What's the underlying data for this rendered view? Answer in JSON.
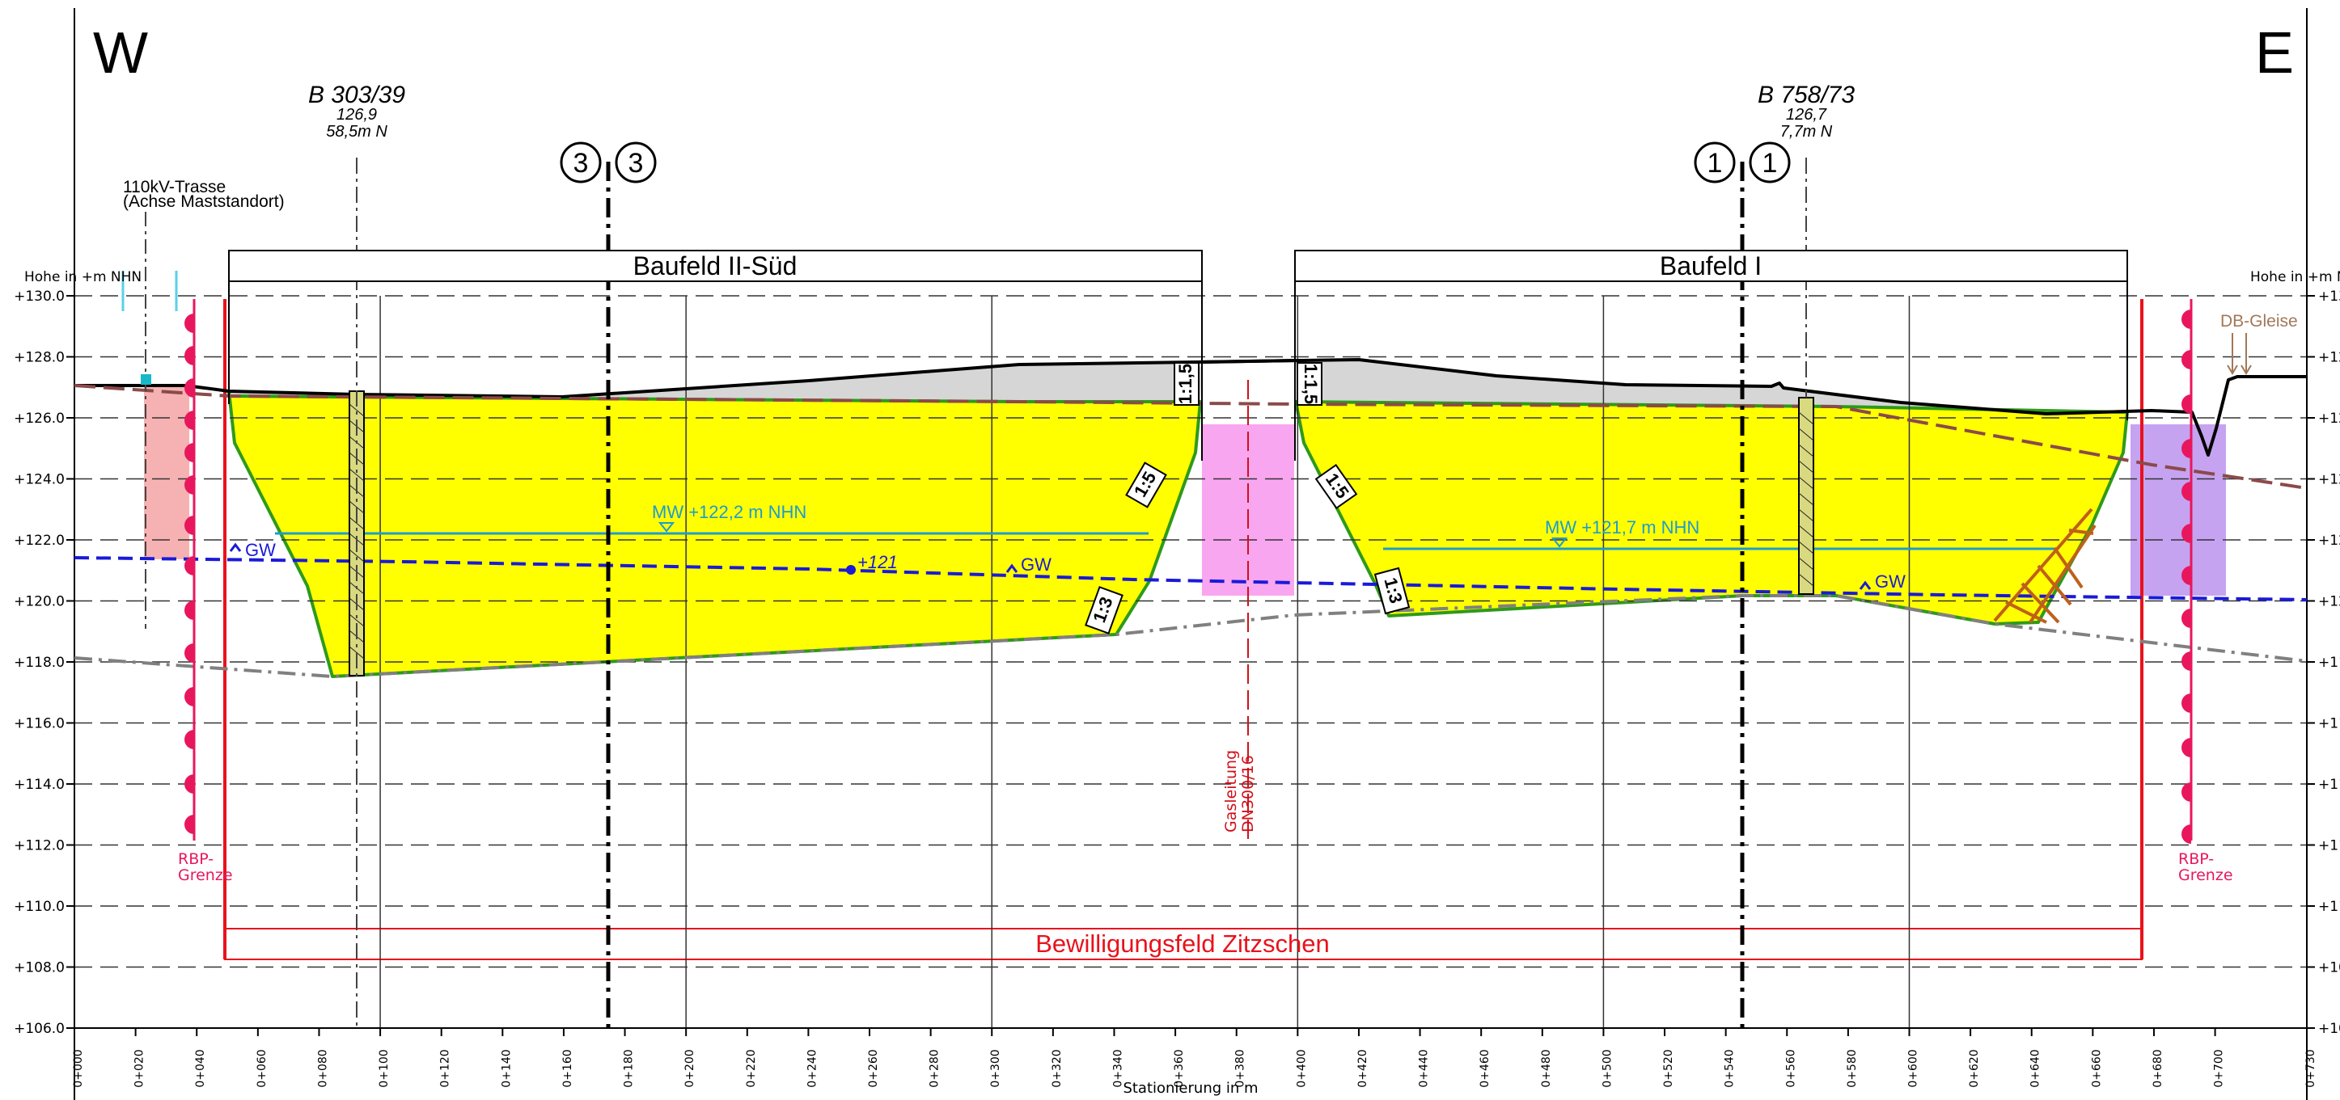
{
  "orientation": {
    "west": "W",
    "east": "E"
  },
  "axis": {
    "height_label_left": "Hohe in +m NHN",
    "height_label_right": "Hohe in +m NHN",
    "y_ticks": [
      "+130.0",
      "+128.0",
      "+126.0",
      "+124.0",
      "+122.0",
      "+120.0",
      "+118.0",
      "+116.0",
      "+114.0",
      "+112.0",
      "+110.0",
      "+108.0",
      "+106.0"
    ],
    "x_ticks": [
      "0+000",
      "0+020",
      "0+040",
      "0+060",
      "0+080",
      "0+100",
      "0+120",
      "0+140",
      "0+160",
      "0+180",
      "0+200",
      "0+220",
      "0+240",
      "0+260",
      "0+280",
      "0+300",
      "0+320",
      "0+340",
      "0+360",
      "0+380",
      "0+400",
      "0+420",
      "0+440",
      "0+460",
      "0+480",
      "0+500",
      "0+520",
      "0+540",
      "0+560",
      "0+580",
      "0+600",
      "0+620",
      "0+640",
      "0+660",
      "0+680",
      "0+700",
      "0+730"
    ],
    "x_label": "Stationierung in m"
  },
  "boreholes": [
    {
      "name": "B 303/39",
      "elevation": "126,9",
      "offset": "58,5m N"
    },
    {
      "name": "B 758/73",
      "elevation": "126,7",
      "offset": "7,7m N"
    }
  ],
  "sections": [
    {
      "left": "3",
      "right": "3"
    },
    {
      "left": "1",
      "right": "1"
    }
  ],
  "trasse": {
    "line1": "110kV-Trasse",
    "line2": "(Achse Maststandort)"
  },
  "fields": {
    "south": "Baufeld II-Süd",
    "north": "Baufeld I"
  },
  "water_levels": {
    "west": "MW +122,2 m NHN",
    "east": "MW +121,7 m NHN",
    "point": "+121"
  },
  "groundwater": {
    "gw1": "GW",
    "gw2": "GW",
    "gw3": "GW"
  },
  "slopes": {
    "s1": "1:1,5",
    "s2": "1:5",
    "s3": "1:3",
    "s4": "1:1,5",
    "s5": "1:5",
    "s6": "1:3"
  },
  "rbp": {
    "left": "RBP-\nGrenze",
    "right": "RBP-\nGrenze",
    "left_l1": "RBP-",
    "left_l2": "Grenze",
    "right_l1": "RBP-",
    "right_l2": "Grenze"
  },
  "gas": {
    "line1": "Gasleitung",
    "line2": "DN300/16"
  },
  "db": "DB-Gleise",
  "permit": "Bewilligungsfeld  Zitzschen",
  "colors": {
    "excavation": "#ffff00",
    "excavation_edge": "#2e9a1a",
    "fill_grey": "#d6d6d6",
    "water_blue": "#1e9bd0",
    "gw_blue": "#1a1ad8",
    "permit_red": "#e8121c",
    "rbp_pink": "#e8175d",
    "gas_red": "#d0101a",
    "zone_pink": "#f9a6f0",
    "zone_purple": "#c6a3f1",
    "zone_salmon": "#f6b2b2",
    "db_brown": "#a0785a"
  }
}
